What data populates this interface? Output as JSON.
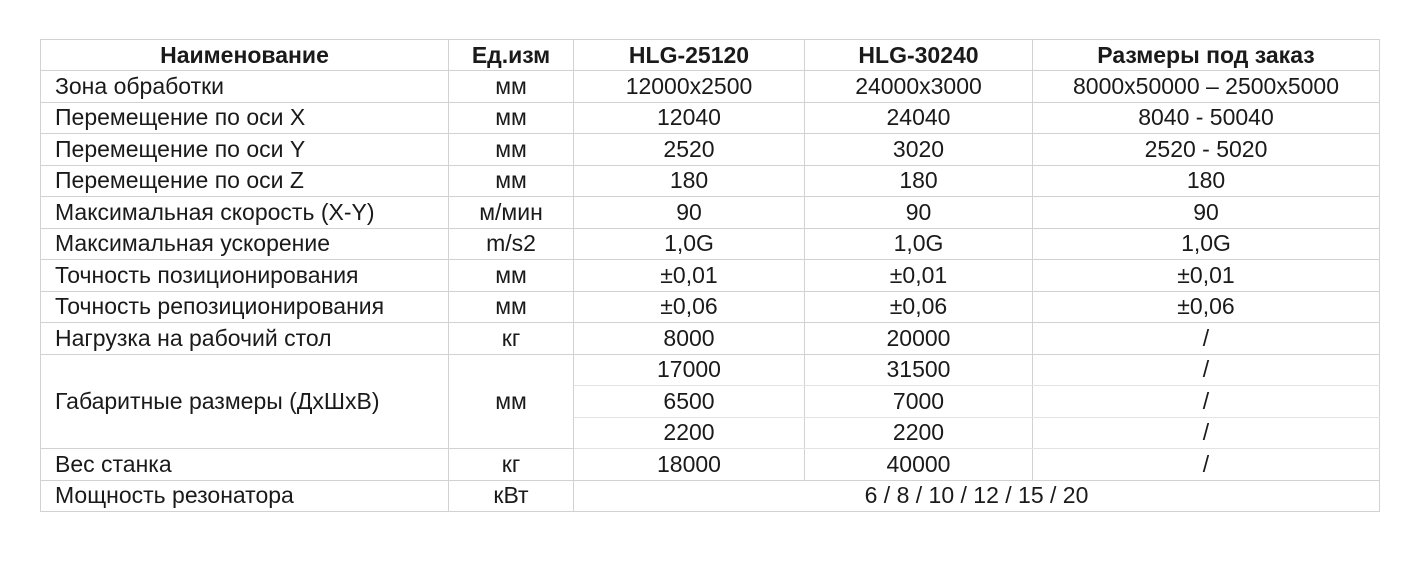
{
  "table": {
    "headers": {
      "name": "Наименование",
      "unit": "Ед.изм",
      "model1": "HLG-25120",
      "model2": "HLG-30240",
      "model3": "Размеры под заказ"
    },
    "rows": [
      {
        "name": "Зона обработки",
        "unit": "мм",
        "v1": "12000x2500",
        "v2": "24000x3000",
        "v3": "8000x50000 – 2500x5000"
      },
      {
        "name": "Перемещение по оси X",
        "unit": "мм",
        "v1": "12040",
        "v2": "24040",
        "v3": "8040 - 50040"
      },
      {
        "name": "Перемещение по оси Y",
        "unit": "мм",
        "v1": "2520",
        "v2": "3020",
        "v3": "2520 - 5020"
      },
      {
        "name": "Перемещение по оси Z",
        "unit": "мм",
        "v1": "180",
        "v2": "180",
        "v3": "180"
      },
      {
        "name": "Максимальная скорость (X-Y)",
        "unit": "м/мин",
        "v1": "90",
        "v2": "90",
        "v3": "90"
      },
      {
        "name": "Максимальная ускорение",
        "unit": "m/s2",
        "v1": "1,0G",
        "v2": "1,0G",
        "v3": "1,0G"
      },
      {
        "name": "Точность позиционирования",
        "unit": "мм",
        "v1": "±0,01",
        "v2": "±0,01",
        "v3": "±0,01"
      },
      {
        "name": "Точность репозиционирования",
        "unit": "мм",
        "v1": "±0,06",
        "v2": "±0,06",
        "v3": "±0,06"
      },
      {
        "name": "Нагрузка на рабочий стол",
        "unit": "кг",
        "v1": "8000",
        "v2": "20000",
        "v3": "/"
      }
    ],
    "dimensions": {
      "name": "Габаритные размеры (ДхШхВ)",
      "unit": "мм",
      "sub": [
        {
          "v1": "17000",
          "v2": "31500",
          "v3": "/"
        },
        {
          "v1": "6500",
          "v2": "7000",
          "v3": "/"
        },
        {
          "v1": "2200",
          "v2": "2200",
          "v3": "/"
        }
      ]
    },
    "weight": {
      "name": "Вес станка",
      "unit": "кг",
      "v1": "18000",
      "v2": "40000",
      "v3": "/"
    },
    "power": {
      "name": "Мощность резонатора",
      "unit": "кВт",
      "value": "6 / 8 / 10 / 12 / 15 / 20"
    }
  }
}
